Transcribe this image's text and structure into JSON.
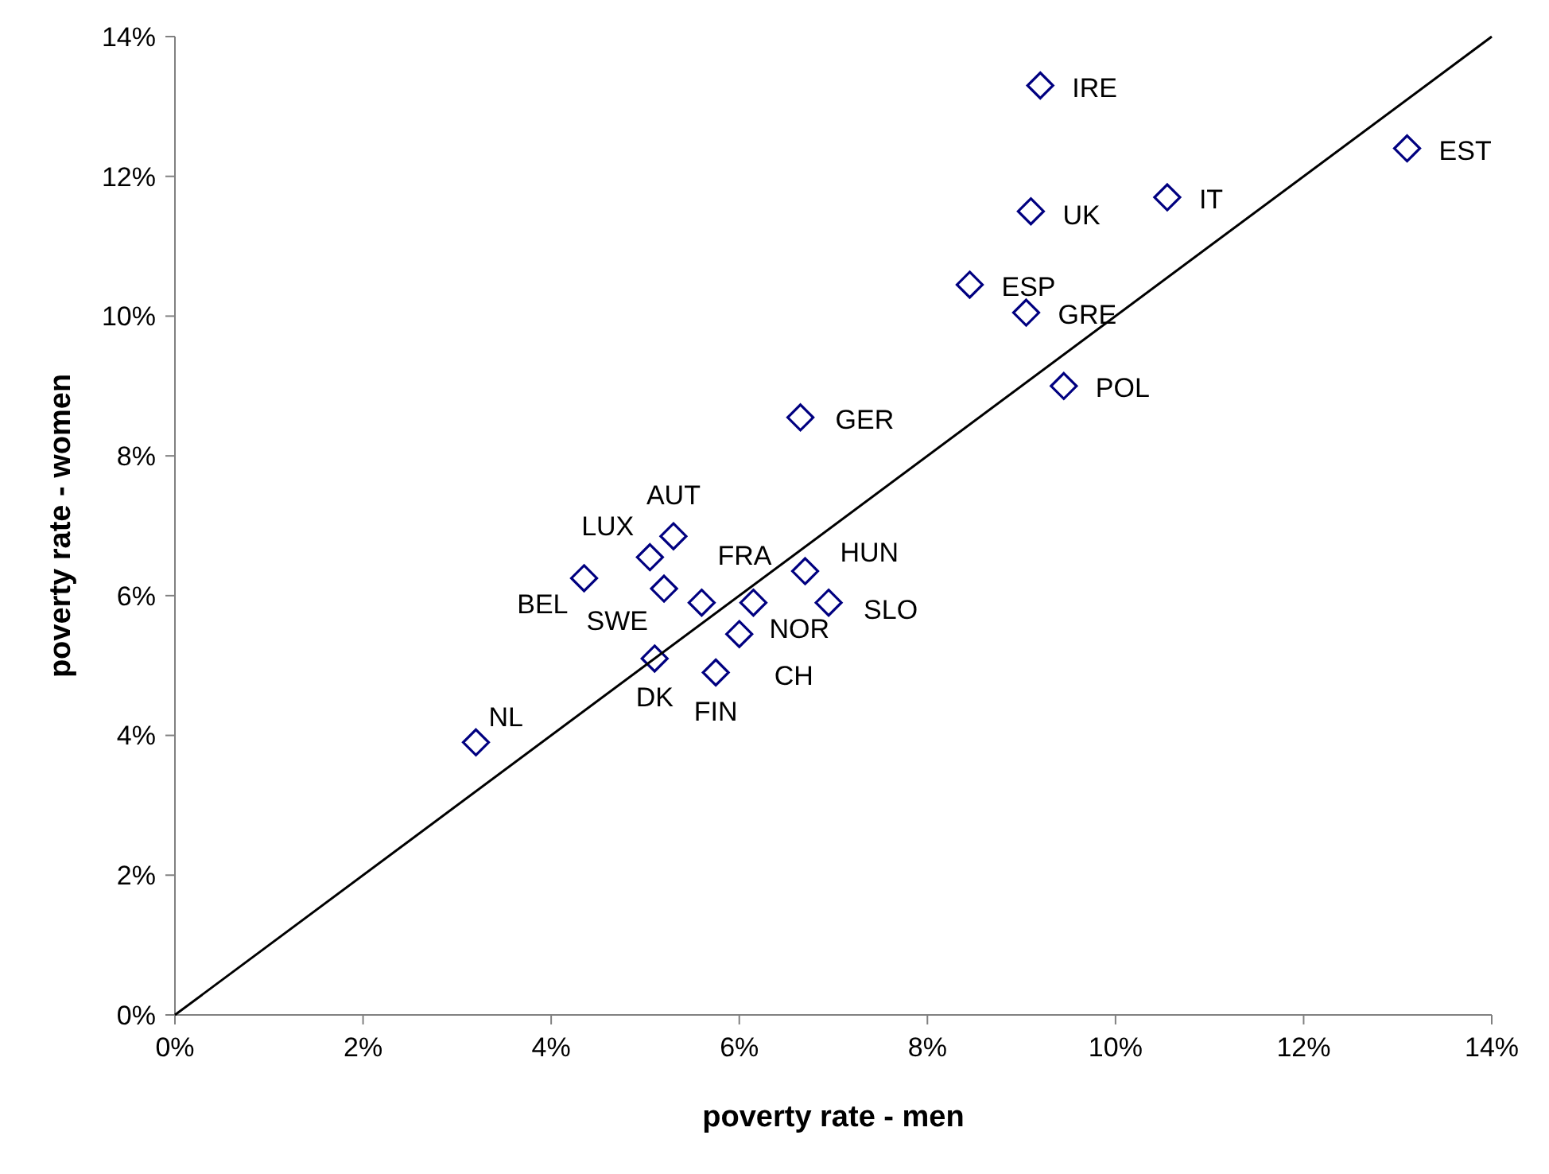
{
  "chart_data": {
    "type": "scatter",
    "xlabel": "poverty rate - men",
    "ylabel": "poverty rate - women",
    "xlim": [
      0,
      14
    ],
    "ylim": [
      0,
      14
    ],
    "xticks": [
      {
        "value": 0,
        "label": "0%"
      },
      {
        "value": 2,
        "label": "2%"
      },
      {
        "value": 4,
        "label": "4%"
      },
      {
        "value": 6,
        "label": "6%"
      },
      {
        "value": 8,
        "label": "8%"
      },
      {
        "value": 10,
        "label": "10%"
      },
      {
        "value": 12,
        "label": "12%"
      },
      {
        "value": 14,
        "label": "14%"
      }
    ],
    "yticks": [
      {
        "value": 0,
        "label": "0%"
      },
      {
        "value": 2,
        "label": "2%"
      },
      {
        "value": 4,
        "label": "4%"
      },
      {
        "value": 6,
        "label": "6%"
      },
      {
        "value": 8,
        "label": "8%"
      },
      {
        "value": 10,
        "label": "10%"
      },
      {
        "value": 12,
        "label": "12%"
      },
      {
        "value": 14,
        "label": "14%"
      }
    ],
    "grid": false,
    "series": [
      {
        "color": "#000080",
        "marker": "diamond",
        "x": [
          3.2,
          4.35,
          5.05,
          5.3,
          5.2,
          5.1,
          5.6,
          5.75,
          6.0,
          6.15,
          6.65,
          6.7,
          6.95,
          8.45,
          9.05,
          9.1,
          9.2,
          9.45,
          10.55,
          13.1
        ],
        "values": [
          3.9,
          6.25,
          6.55,
          6.85,
          6.1,
          5.1,
          5.9,
          4.9,
          5.45,
          5.9,
          8.55,
          6.35,
          5.9,
          10.45,
          10.05,
          11.5,
          13.3,
          9.0,
          11.7,
          12.4
        ]
      },
      {
        "type": "line",
        "color": "#000000",
        "marker": "none",
        "line_style": "solid",
        "x": [
          0,
          14
        ],
        "values": [
          0,
          14
        ]
      }
    ],
    "annotations": [
      {
        "text": "NL",
        "x": 3.2,
        "y": 3.9
      },
      {
        "text": "BEL",
        "x": 4.35,
        "y": 6.25
      },
      {
        "text": "LUX",
        "x": 5.05,
        "y": 6.55
      },
      {
        "text": "AUT",
        "x": 5.3,
        "y": 6.85
      },
      {
        "text": "SWE",
        "x": 5.2,
        "y": 6.1
      },
      {
        "text": "DK",
        "x": 5.1,
        "y": 5.1
      },
      {
        "text": "FRA",
        "x": 5.6,
        "y": 5.9
      },
      {
        "text": "FIN",
        "x": 5.75,
        "y": 4.9
      },
      {
        "text": "CH",
        "x": 6.0,
        "y": 5.45
      },
      {
        "text": "NOR",
        "x": 6.15,
        "y": 5.9
      },
      {
        "text": "GER",
        "x": 6.65,
        "y": 8.55
      },
      {
        "text": "HUN",
        "x": 6.7,
        "y": 6.35
      },
      {
        "text": "SLO",
        "x": 6.95,
        "y": 5.9
      },
      {
        "text": "ESP",
        "x": 8.45,
        "y": 10.45
      },
      {
        "text": "GRE",
        "x": 9.05,
        "y": 10.05
      },
      {
        "text": "UK",
        "x": 9.1,
        "y": 11.5
      },
      {
        "text": "IRE",
        "x": 9.2,
        "y": 13.3
      },
      {
        "text": "POL",
        "x": 9.45,
        "y": 9.0
      },
      {
        "text": "IT",
        "x": 10.55,
        "y": 11.7
      },
      {
        "text": "EST",
        "x": 13.1,
        "y": 12.4
      }
    ]
  }
}
